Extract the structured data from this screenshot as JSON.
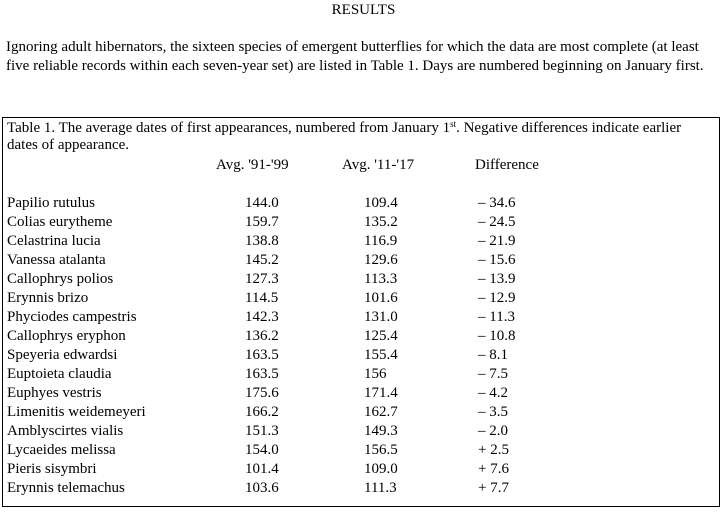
{
  "heading": "RESULTS",
  "intro": "Ignoring adult hibernators, the sixteen species of emergent butterflies for which the data are most complete (at least five reliable records within each seven-year set) are listed in Table 1. Days are numbered beginning on January first.",
  "table": {
    "caption_before": "Table 1. The average dates of first appearances, numbered from January 1",
    "caption_sup": "st",
    "caption_after": ". Negative differences indicate earlier dates of appearance.",
    "columns": {
      "avg_91_99": "Avg. '91-'99",
      "avg_11_17": "Avg. '11-'17",
      "difference": "Difference"
    },
    "rows": [
      {
        "species": "Papilio rutulus",
        "avg_91_99": "144.0",
        "avg_11_17": "109.4",
        "difference": "– 34.6"
      },
      {
        "species": "Colias eurytheme",
        "avg_91_99": "159.7",
        "avg_11_17": "135.2",
        "difference": "– 24.5"
      },
      {
        "species": "Celastrina lucia",
        "avg_91_99": "138.8",
        "avg_11_17": "116.9",
        "difference": "– 21.9"
      },
      {
        "species": "Vanessa atalanta",
        "avg_91_99": "145.2",
        "avg_11_17": "129.6",
        "difference": "– 15.6"
      },
      {
        "species": "Callophrys polios",
        "avg_91_99": "127.3",
        "avg_11_17": "113.3",
        "difference": "– 13.9"
      },
      {
        "species": "Erynnis brizo",
        "avg_91_99": "114.5",
        "avg_11_17": "101.6",
        "difference": "– 12.9"
      },
      {
        "species": "Phyciodes campestris",
        "avg_91_99": "142.3",
        "avg_11_17": "131.0",
        "difference": "– 11.3"
      },
      {
        "species": "Callophrys eryphon",
        "avg_91_99": "136.2",
        "avg_11_17": "125.4",
        "difference": "– 10.8"
      },
      {
        "species": "Speyeria edwardsi",
        "avg_91_99": "163.5",
        "avg_11_17": "155.4",
        "difference": "– 8.1"
      },
      {
        "species": "Euptoieta claudia",
        "avg_91_99": "163.5",
        "avg_11_17": "156",
        "difference": "– 7.5"
      },
      {
        "species": "Euphyes vestris",
        "avg_91_99": "175.6",
        "avg_11_17": "171.4",
        "difference": "– 4.2"
      },
      {
        "species": "Limenitis weidemeyeri",
        "avg_91_99": "166.2",
        "avg_11_17": "162.7",
        "difference": "– 3.5"
      },
      {
        "species": "Amblyscirtes vialis",
        "avg_91_99": "151.3",
        "avg_11_17": "149.3",
        "difference": "– 2.0"
      },
      {
        "species": "Lycaeides melissa",
        "avg_91_99": "154.0",
        "avg_11_17": "156.5",
        "difference": "+ 2.5"
      },
      {
        "species": "Pieris sisymbri",
        "avg_91_99": "101.4",
        "avg_11_17": "109.0",
        "difference": "+ 7.6"
      },
      {
        "species": "Erynnis telemachus",
        "avg_91_99": "103.6",
        "avg_11_17": "111.3",
        "difference": "+ 7.7"
      }
    ]
  }
}
